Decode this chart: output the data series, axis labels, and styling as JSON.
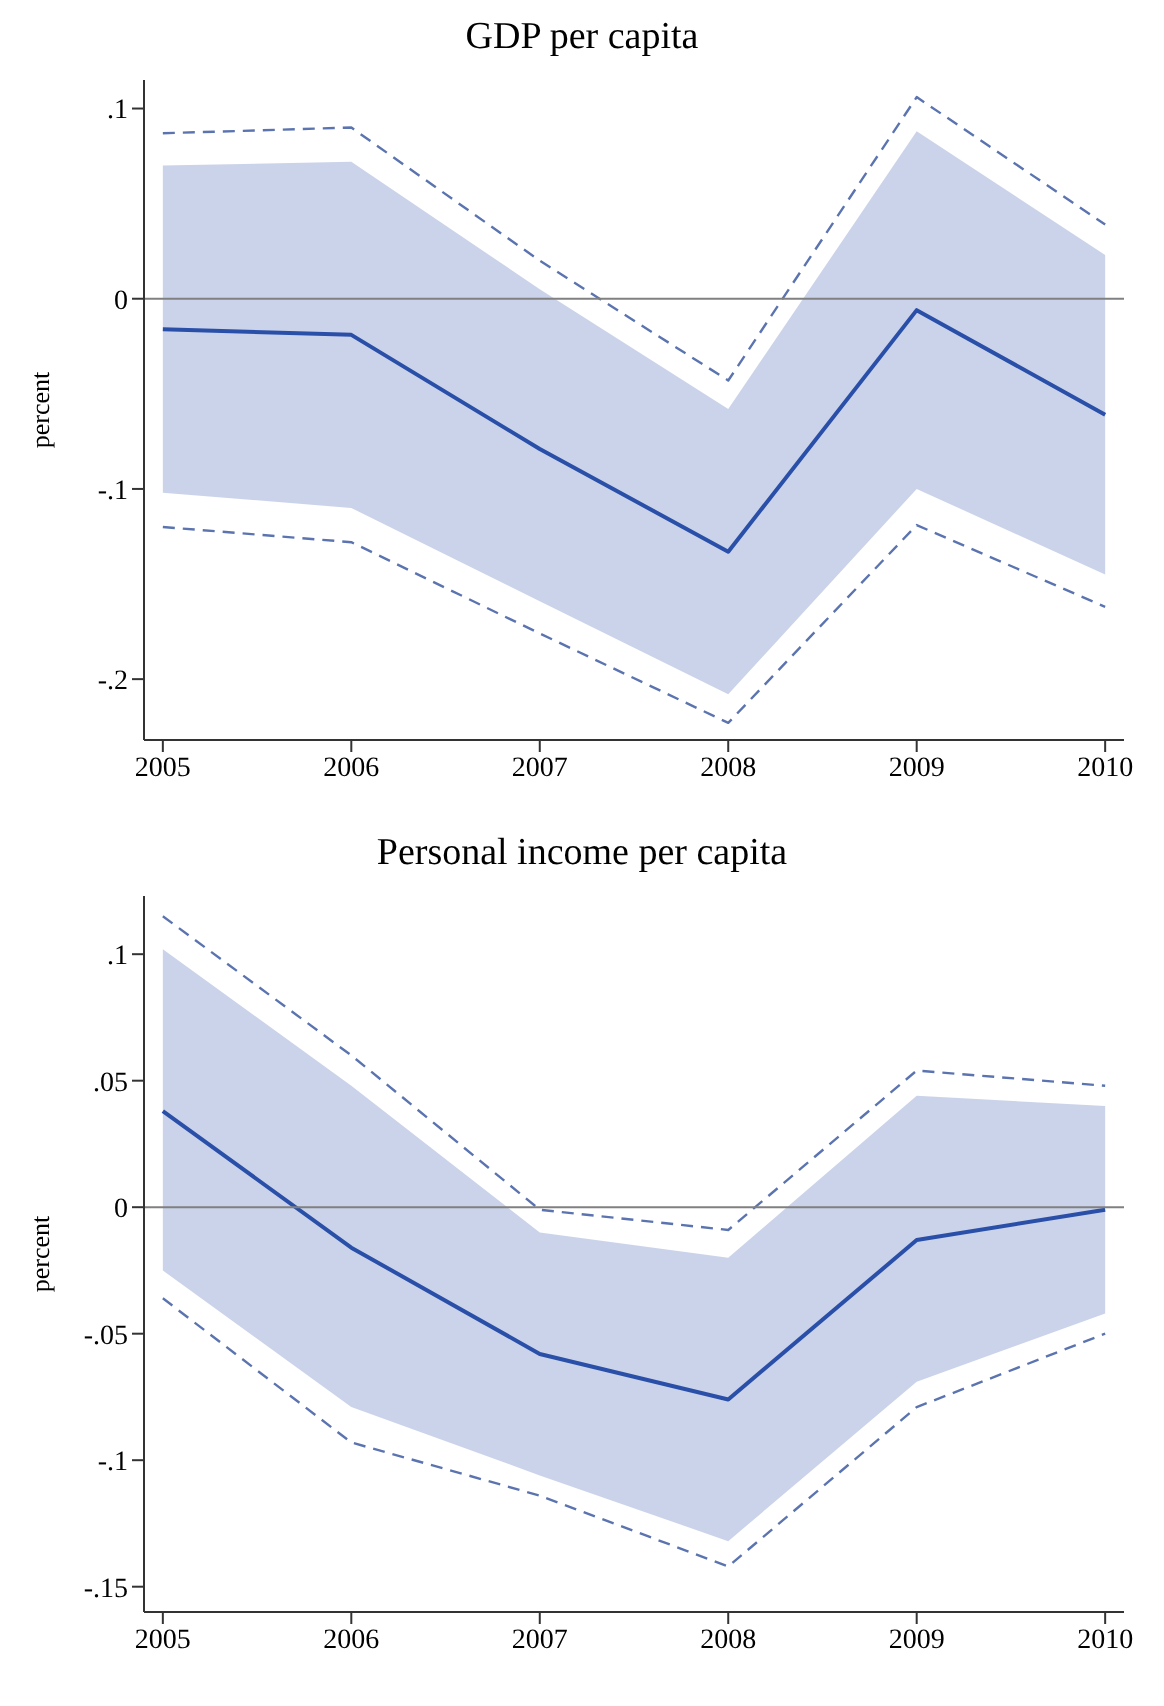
{
  "chart_data": [
    {
      "type": "line",
      "title": "GDP per capita",
      "ylabel": "percent",
      "x": [
        2005,
        2006,
        2007,
        2008,
        2009,
        2010
      ],
      "xlim": [
        2004.9,
        2010.1
      ],
      "xticks": [
        2005,
        2006,
        2007,
        2008,
        2009,
        2010
      ],
      "ylim": [
        -0.232,
        0.115
      ],
      "yticks": [
        {
          "value": -0.2,
          "label": "-.2"
        },
        {
          "value": -0.1,
          "label": "-.1"
        },
        0,
        {
          "value": 0.1,
          "label": ".1"
        }
      ],
      "grid": false,
      "marker": "none",
      "series": [
        {
          "color": "#2a4fa8",
          "line_style": "solid",
          "values": [
            -0.016,
            -0.019,
            -0.079,
            -0.133,
            -0.006,
            -0.061
          ],
          "lower": [
            -0.102,
            -0.11,
            -0.159,
            -0.208,
            -0.1,
            -0.145
          ],
          "upper": [
            0.07,
            0.072,
            0.005,
            -0.058,
            0.088,
            0.023
          ]
        },
        {
          "color": "#5b74b0",
          "line_style": "dashed",
          "values": [
            0.087,
            0.09,
            0.02,
            -0.043,
            0.106,
            0.039
          ]
        },
        {
          "color": "#5b74b0",
          "line_style": "dashed",
          "values": [
            -0.12,
            -0.128,
            -0.176,
            -0.223,
            -0.119,
            -0.162
          ]
        }
      ],
      "ref_lines": [
        {
          "axis": "y",
          "value": 0,
          "color": "#808080"
        }
      ]
    },
    {
      "type": "line",
      "title": "Personal income per capita",
      "ylabel": "percent",
      "x": [
        2005,
        2006,
        2007,
        2008,
        2009,
        2010
      ],
      "xlim": [
        2004.9,
        2010.1
      ],
      "xticks": [
        2005,
        2006,
        2007,
        2008,
        2009,
        2010
      ],
      "ylim": [
        -0.16,
        0.123
      ],
      "yticks": [
        {
          "value": -0.15,
          "label": "-.15"
        },
        {
          "value": -0.1,
          "label": "-.1"
        },
        {
          "value": -0.05,
          "label": "-.05"
        },
        0,
        {
          "value": 0.05,
          "label": ".05"
        },
        {
          "value": 0.1,
          "label": ".1"
        }
      ],
      "grid": false,
      "marker": "none",
      "series": [
        {
          "color": "#2a4fa8",
          "line_style": "solid",
          "values": [
            0.038,
            -0.016,
            -0.058,
            -0.076,
            -0.013,
            -0.001
          ],
          "lower": [
            -0.025,
            -0.079,
            -0.106,
            -0.132,
            -0.069,
            -0.042
          ],
          "upper": [
            0.102,
            0.048,
            -0.01,
            -0.02,
            0.044,
            0.04
          ]
        },
        {
          "color": "#5b74b0",
          "line_style": "dashed",
          "values": [
            0.115,
            0.06,
            -0.001,
            -0.009,
            0.054,
            0.048
          ]
        },
        {
          "color": "#5b74b0",
          "line_style": "dashed",
          "values": [
            -0.036,
            -0.093,
            -0.114,
            -0.142,
            -0.079,
            -0.05
          ]
        }
      ],
      "ref_lines": [
        {
          "axis": "y",
          "value": 0,
          "color": "#808080"
        }
      ]
    }
  ]
}
